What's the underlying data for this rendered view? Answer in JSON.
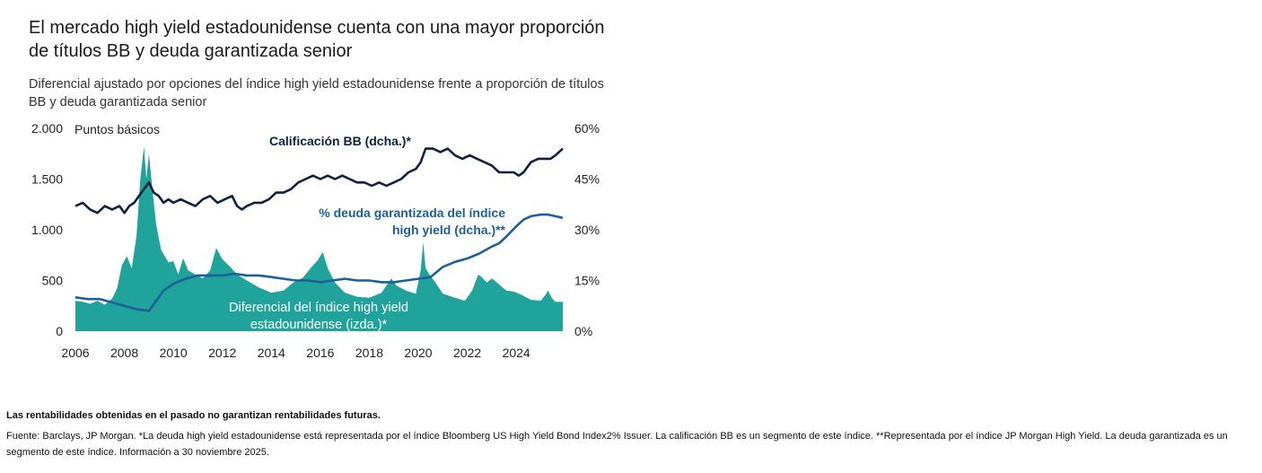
{
  "page": {
    "title": "El mercado high yield estadounidense cuenta con una mayor proporción de títulos BB y deuda garantizada senior",
    "subtitle": "Diferencial ajustado por opciones del índice high yield estadounidense frente a proporción de títulos BB y deuda garantizada senior",
    "disclaimer": "Las rentabilidades obtenidas en el pasado no garantizan rentabilidades futuras.",
    "source": "Fuente: Barclays, JP Morgan. *La deuda high yield estadounidense está representada por el índice Bloomberg US High Yield Bond Index2% Issuer. La calificación BB es un segmento de este índice. **Representada por el índice JP Morgan High Yield. La deuda garantizada es un segmento de este índice. Información a 30 noviembre 2025."
  },
  "colors": {
    "spread_fill": "#1fa39a",
    "bb_line": "#0e2240",
    "secured_line": "#1d5f99",
    "text": "#1a1a1a",
    "axis_text": "#222222"
  },
  "chart_data": {
    "type": "area",
    "title": "El mercado high yield estadounidense cuenta con una mayor proporción de títulos BB y deuda garantizada senior",
    "left_axis": {
      "label": "Puntos básicos",
      "range": [
        0,
        2000
      ],
      "ticks": [
        0,
        500,
        1000,
        1500,
        2000
      ],
      "tick_labels": [
        "0",
        "500",
        "1.000",
        "1.500",
        "2.000"
      ]
    },
    "right_axis": {
      "range": [
        0,
        60
      ],
      "ticks": [
        0,
        15,
        30,
        45,
        60
      ],
      "tick_labels": [
        "0%",
        "15%",
        "30%",
        "45%",
        "60%"
      ]
    },
    "x_axis": {
      "range": [
        2006,
        2025.9
      ],
      "ticks": [
        2006,
        2008,
        2010,
        2012,
        2014,
        2016,
        2018,
        2020,
        2022,
        2024
      ],
      "tick_labels": [
        "2006",
        "2008",
        "2010",
        "2012",
        "2014",
        "2016",
        "2018",
        "2020",
        "2022",
        "2024"
      ]
    },
    "series": [
      {
        "name": "Diferencial del índice high yield estadounidense (izda.)*",
        "label_lines": [
          "Diferencial del índice high yield",
          "estadounidense (izda.)*"
        ],
        "axis": "left",
        "style": "area",
        "x": [
          2006.0,
          2006.3,
          2006.6,
          2006.9,
          2007.2,
          2007.5,
          2007.7,
          2007.9,
          2008.1,
          2008.3,
          2008.5,
          2008.65,
          2008.8,
          2008.9,
          2009.0,
          2009.15,
          2009.3,
          2009.5,
          2009.8,
          2010.0,
          2010.2,
          2010.4,
          2010.6,
          2010.9,
          2011.2,
          2011.5,
          2011.75,
          2012.0,
          2012.3,
          2012.6,
          2013.0,
          2013.5,
          2014.0,
          2014.5,
          2014.9,
          2015.3,
          2015.6,
          2015.9,
          2016.1,
          2016.3,
          2016.6,
          2017.0,
          2017.5,
          2018.0,
          2018.5,
          2018.9,
          2019.1,
          2019.5,
          2019.9,
          2020.1,
          2020.2,
          2020.25,
          2020.3,
          2020.45,
          2020.7,
          2021.0,
          2021.5,
          2021.9,
          2022.2,
          2022.45,
          2022.6,
          2022.8,
          2023.0,
          2023.3,
          2023.6,
          2023.9,
          2024.2,
          2024.6,
          2025.0,
          2025.2,
          2025.3,
          2025.45,
          2025.6,
          2025.9
        ],
        "values": [
          300,
          290,
          270,
          300,
          260,
          320,
          420,
          650,
          740,
          620,
          950,
          1500,
          1820,
          1500,
          1750,
          1380,
          1050,
          800,
          680,
          690,
          560,
          720,
          600,
          560,
          520,
          600,
          820,
          710,
          640,
          560,
          500,
          430,
          380,
          400,
          480,
          530,
          620,
          700,
          780,
          620,
          480,
          380,
          340,
          330,
          380,
          520,
          450,
          400,
          370,
          600,
          880,
          750,
          620,
          560,
          480,
          370,
          330,
          300,
          400,
          560,
          530,
          480,
          520,
          460,
          400,
          390,
          360,
          310,
          300,
          360,
          400,
          330,
          290,
          290
        ]
      },
      {
        "name": "Calificación BB (dcha.)*",
        "label_lines": [
          "Calificación BB (dcha.)*"
        ],
        "axis": "right",
        "style": "line",
        "x": [
          2006.0,
          2006.3,
          2006.6,
          2006.9,
          2007.2,
          2007.5,
          2007.8,
          2008.0,
          2008.2,
          2008.4,
          2008.6,
          2008.8,
          2009.0,
          2009.2,
          2009.4,
          2009.6,
          2009.8,
          2010.0,
          2010.3,
          2010.6,
          2010.9,
          2011.2,
          2011.5,
          2011.8,
          2012.1,
          2012.4,
          2012.6,
          2012.8,
          2013.0,
          2013.3,
          2013.6,
          2013.9,
          2014.2,
          2014.5,
          2014.8,
          2015.1,
          2015.4,
          2015.7,
          2016.0,
          2016.3,
          2016.6,
          2016.9,
          2017.2,
          2017.5,
          2017.8,
          2018.1,
          2018.4,
          2018.7,
          2019.0,
          2019.3,
          2019.6,
          2019.9,
          2020.1,
          2020.3,
          2020.6,
          2020.9,
          2021.2,
          2021.5,
          2021.8,
          2022.1,
          2022.4,
          2022.7,
          2023.0,
          2023.3,
          2023.6,
          2023.9,
          2024.1,
          2024.3,
          2024.6,
          2024.9,
          2025.2,
          2025.4,
          2025.6,
          2025.9
        ],
        "values": [
          37,
          38,
          36,
          35,
          37,
          36,
          37,
          35,
          37,
          38,
          40,
          42,
          44,
          41,
          40,
          38,
          39,
          38,
          39,
          38,
          37,
          39,
          40,
          38,
          39,
          40,
          37,
          36,
          37,
          38,
          38,
          39,
          41,
          41,
          42,
          44,
          45,
          46,
          45,
          46,
          45,
          46,
          45,
          44,
          44,
          43,
          44,
          43,
          44,
          45,
          47,
          48,
          50,
          54,
          54,
          53,
          54,
          52,
          51,
          52,
          51,
          50,
          49,
          47,
          47,
          47,
          46,
          47,
          50,
          51,
          51,
          51,
          52,
          54
        ]
      },
      {
        "name": "% deuda garantizada del índice high yield (dcha.)**",
        "label_lines": [
          "% deuda garantizada del índice",
          "high yield (dcha.)**"
        ],
        "axis": "right",
        "style": "line",
        "x": [
          2006.0,
          2006.5,
          2007.0,
          2007.5,
          2008.0,
          2008.5,
          2009.0,
          2009.3,
          2009.6,
          2010.0,
          2010.5,
          2011.0,
          2011.5,
          2012.0,
          2012.5,
          2013.0,
          2013.5,
          2014.0,
          2014.5,
          2015.0,
          2015.5,
          2016.0,
          2016.5,
          2017.0,
          2017.5,
          2018.0,
          2018.5,
          2019.0,
          2019.5,
          2020.0,
          2020.5,
          2021.0,
          2021.5,
          2022.0,
          2022.5,
          2023.0,
          2023.3,
          2023.6,
          2024.0,
          2024.3,
          2024.6,
          2025.0,
          2025.3,
          2025.6,
          2025.9
        ],
        "values": [
          10,
          9.5,
          9.5,
          8.5,
          7.5,
          6.5,
          6,
          9,
          12,
          14,
          15.5,
          16.5,
          16.5,
          16.5,
          17,
          16.5,
          16.5,
          16,
          15.5,
          15,
          15,
          14.5,
          15,
          15.5,
          15,
          15,
          14.5,
          14.5,
          15,
          15.5,
          16,
          19,
          20.5,
          21.5,
          23,
          25,
          26,
          28,
          31,
          33,
          34,
          34.5,
          34.5,
          34,
          33.5
        ]
      }
    ]
  }
}
